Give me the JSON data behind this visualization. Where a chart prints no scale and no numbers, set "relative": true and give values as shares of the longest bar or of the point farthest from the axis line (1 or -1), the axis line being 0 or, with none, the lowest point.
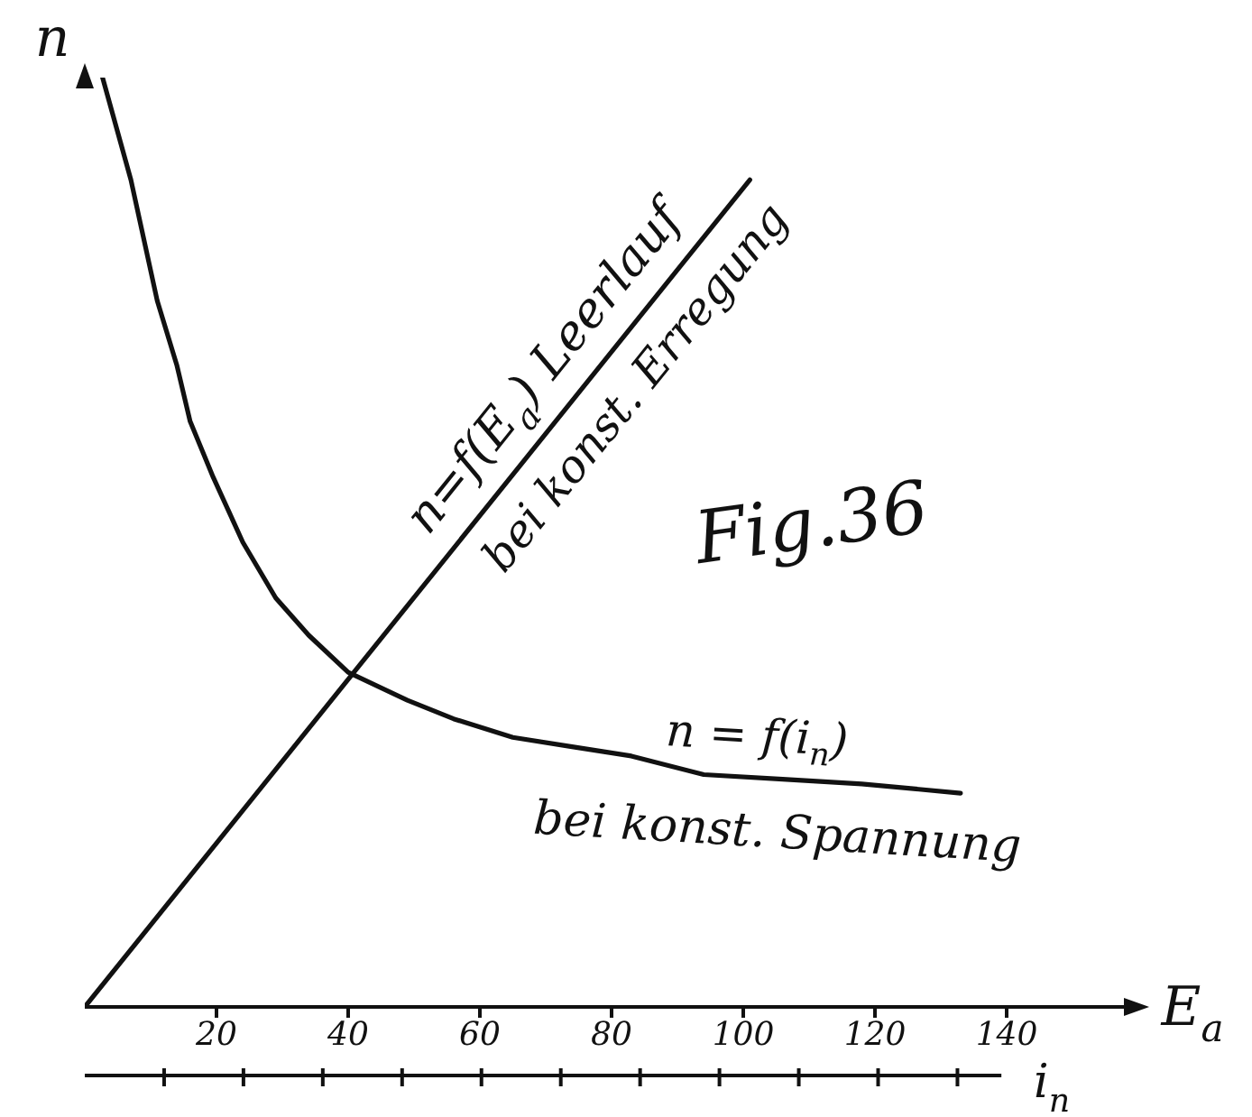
{
  "chart_data": {
    "type": "line",
    "title": "Fig.36",
    "xlabel": "E$_{a}$",
    "x2label": "i$_{n}$",
    "ylabel": "n",
    "relative": true,
    "xlim": [
      0,
      160
    ],
    "xticks": [
      20,
      40,
      60,
      80,
      100,
      120,
      140
    ],
    "series": [
      {
        "name": "n=f(E$_{a}$) Leerlauf",
        "color": "#111111",
        "x": [
          0,
          101
        ],
        "values": [
          0,
          0.89
        ]
      },
      {
        "name": "n = f(i$_{n}$)",
        "color": "#111111",
        "x": [
          2.7,
          7,
          11,
          14,
          16,
          19.5,
          24,
          29,
          34,
          40,
          49,
          56,
          65,
          74,
          83,
          94,
          106,
          118,
          133
        ],
        "values": [
          1,
          0.89,
          0.76,
          0.69,
          0.63,
          0.57,
          0.5,
          0.44,
          0.4,
          0.36,
          0.33,
          0.31,
          0.29,
          0.28,
          0.27,
          0.25,
          0.245,
          0.24,
          0.23
        ]
      }
    ],
    "annotations": [
      "bei konst. Erregung",
      "bei konst. Spannung"
    ],
    "marker": "none",
    "line_style": "solid"
  }
}
